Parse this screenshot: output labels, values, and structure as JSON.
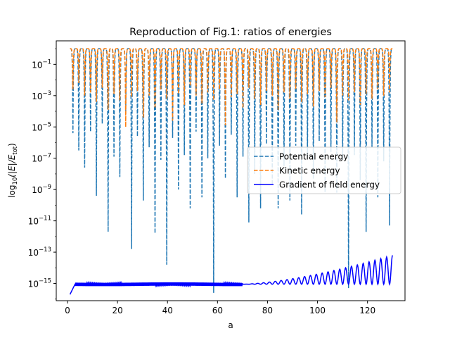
{
  "chart_data": {
    "type": "line",
    "title": "Reproduction of Fig.1: ratios of energies",
    "xlabel": "a",
    "ylabel": {
      "main": "log",
      "sub": "10",
      "rest": "(|E|/E",
      "sub2": "tot",
      "close": ")"
    },
    "xlim": [
      -4.5,
      135
    ],
    "ylim_log10": [
      -16.1,
      0.5
    ],
    "y_scale": "log",
    "x_ticks": [
      0,
      20,
      40,
      60,
      80,
      100,
      120
    ],
    "y_ticks": [
      {
        "exp": -1,
        "label_base": "10",
        "label_exp": "−1"
      },
      {
        "exp": -3,
        "label_base": "10",
        "label_exp": "−3"
      },
      {
        "exp": -5,
        "label_base": "10",
        "label_exp": "−5"
      },
      {
        "exp": -7,
        "label_base": "10",
        "label_exp": "−7"
      },
      {
        "exp": -9,
        "label_base": "10",
        "label_exp": "−9"
      },
      {
        "exp": -11,
        "label_base": "10",
        "label_exp": "−11"
      },
      {
        "exp": -13,
        "label_base": "10",
        "label_exp": "−13"
      },
      {
        "exp": -15,
        "label_base": "10",
        "label_exp": "−15"
      }
    ],
    "grid": false,
    "legend_position": "center-right",
    "series": [
      {
        "name": "Potential energy",
        "color": "#1f77b4",
        "dash": true,
        "x_range": [
          1,
          130
        ],
        "n_oscillations": 55,
        "log10_max": 0.0,
        "dip_log10": [
          -5.4,
          -6.5,
          -7.6,
          -5.3,
          -9.4,
          -4.8,
          -11.7,
          -6.9,
          -8.2,
          -4.2,
          -12.8,
          -5.6,
          -9.7,
          -6.3,
          -11.8,
          -7.1,
          -13.8,
          -5.7,
          -9.0,
          -6.8,
          -10.2,
          -5.3,
          -9.5,
          -7.0,
          -15.6,
          -6.2,
          -8.3,
          -5.5,
          -9.5,
          -6.9,
          -11.1,
          -8.0,
          -10.2,
          -6.1,
          -8.7,
          -10.2,
          -7.5,
          -9.7,
          -6.2,
          -10.6,
          -6.9,
          -8.3,
          -5.9,
          -9.2,
          -6.6,
          -9.2,
          -7.1,
          -15.3,
          -6.8,
          -8.4,
          -11.7,
          -6.3,
          -9.5,
          -7.2,
          -11.3
        ]
      },
      {
        "name": "Kinetic energy",
        "color": "#ff7f0e",
        "dash": true,
        "x_range": [
          1,
          130
        ],
        "n_oscillations": 55,
        "log10_max": 0.0,
        "dip_log10": [
          -2.6,
          -2.2,
          -3.0,
          -2.8,
          -3.4,
          -2.5,
          -3.9,
          -2.9,
          -3.3,
          -5.0,
          -3.1,
          -2.7,
          -4.4,
          -3.0,
          -3.8,
          -2.6,
          -3.2,
          -4.6,
          -2.9,
          -3.6,
          -2.4,
          -3.0,
          -3.5,
          -2.8,
          -3.3,
          -2.6,
          -4.9,
          -3.1,
          -2.9,
          -3.8,
          -2.5,
          -3.2,
          -3.6,
          -2.7,
          -3.0,
          -3.9,
          -2.8,
          -3.2,
          -2.6,
          -3.4,
          -2.9,
          -3.7,
          -2.7,
          -3.1,
          -2.5,
          -4.7,
          -3.0,
          -3.3,
          -2.8,
          -3.6,
          -2.9,
          -3.2,
          -2.6,
          -3.0,
          -2.8
        ]
      },
      {
        "name": "Gradient of field energy",
        "color": "#0000ff",
        "dash": false,
        "x_range": [
          1,
          130
        ],
        "base_log10": -15.05,
        "start_log10": -15.7,
        "grow_from_x": 70,
        "end_max_log10": -13.2,
        "end_min_log10": -15.05,
        "n_oscillations": 55
      }
    ]
  }
}
